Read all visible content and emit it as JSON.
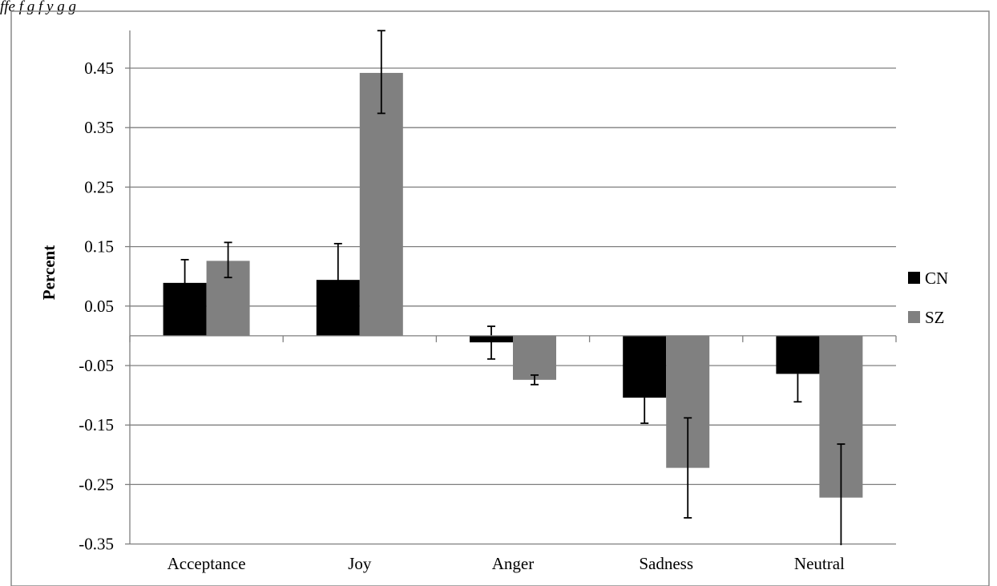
{
  "caption": "ffe                    f                                g f          y                  g                 g",
  "chart_data": {
    "type": "bar",
    "title": "",
    "xlabel": "",
    "ylabel": "Percent",
    "ylim": [
      -0.35,
      0.55
    ],
    "yticks": [
      "0.45",
      "0.35",
      "0.25",
      "0.15",
      "0.05",
      "-0.05",
      "-0.15",
      "-0.25",
      "-0.35"
    ],
    "ytick_values": [
      0.45,
      0.35,
      0.25,
      0.15,
      0.05,
      -0.05,
      -0.15,
      -0.25,
      -0.35
    ],
    "grid": true,
    "legend_position": "right",
    "categories": [
      "Acceptance",
      "Joy",
      "Anger",
      "Sadness",
      "Neutral"
    ],
    "series": [
      {
        "name": "CN",
        "color": "#000000",
        "values": [
          0.089,
          0.094,
          -0.011,
          -0.104,
          -0.064
        ],
        "error_low": [
          0.038,
          0.039,
          0.028,
          0.043,
          0.047
        ],
        "error_high": [
          0.039,
          0.061,
          0.027,
          0.0,
          0.0
        ]
      },
      {
        "name": "SZ",
        "color": "#808080",
        "values": [
          0.126,
          0.442,
          -0.074,
          -0.222,
          -0.272
        ],
        "error_low": [
          0.028,
          0.068,
          0.008,
          0.084,
          0.08
        ],
        "error_high": [
          0.031,
          0.071,
          0.008,
          0.084,
          0.09
        ]
      }
    ]
  }
}
